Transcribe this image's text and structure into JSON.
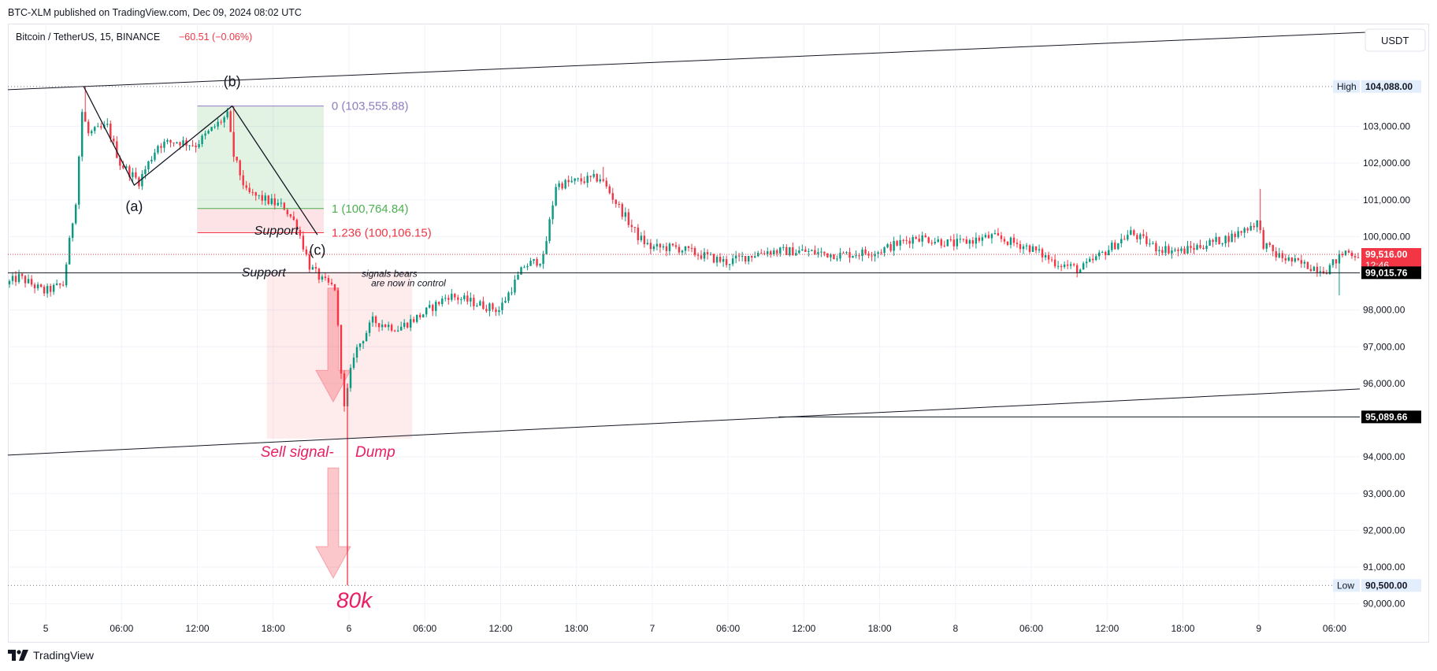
{
  "header": {
    "publisher": "BTC-XLM published on TradingView.com, Dec 09, 2024 08:02 UTC"
  },
  "symbol": {
    "name": "Bitcoin / TetherUS, 15, BINANCE",
    "change": "−60.51 (−0.06%)"
  },
  "currency_button": "USDT",
  "footer": {
    "brand": "TradingView"
  },
  "colors": {
    "up": "#089981",
    "down": "#f23645",
    "axis_text": "#131722",
    "annotation_pink": "#e91e63",
    "fib_purple": "#8e7cc3",
    "fib_green": "#4caf50",
    "fib_red": "#f23645"
  },
  "chart_data": {
    "type": "candlestick",
    "ylim": [
      89500,
      105800
    ],
    "y_ticks": [
      {
        "v": 90000,
        "label": "90,000.00"
      },
      {
        "v": 91000,
        "label": "91,000.00"
      },
      {
        "v": 92000,
        "label": "92,000.00"
      },
      {
        "v": 93000,
        "label": "93,000.00"
      },
      {
        "v": 94000,
        "label": "94,000.00"
      },
      {
        "v": 96000,
        "label": "96,000.00"
      },
      {
        "v": 97000,
        "label": "97,000.00"
      },
      {
        "v": 98000,
        "label": "98,000.00"
      },
      {
        "v": 100000,
        "label": "100,000.00"
      },
      {
        "v": 101000,
        "label": "101,000.00"
      },
      {
        "v": 102000,
        "label": "102,000.00"
      },
      {
        "v": 103000,
        "label": "103,000.00"
      }
    ],
    "x_range": [
      "2024-12-04 21:00",
      "2024-12-09 08:00"
    ],
    "x_ticks": [
      {
        "t": "2024-12-05 00:00",
        "label": "5"
      },
      {
        "t": "2024-12-05 06:00",
        "label": "06:00"
      },
      {
        "t": "2024-12-05 12:00",
        "label": "12:00"
      },
      {
        "t": "2024-12-05 18:00",
        "label": "18:00"
      },
      {
        "t": "2024-12-06 00:00",
        "label": "6"
      },
      {
        "t": "2024-12-06 06:00",
        "label": "06:00"
      },
      {
        "t": "2024-12-06 12:00",
        "label": "12:00"
      },
      {
        "t": "2024-12-06 18:00",
        "label": "18:00"
      },
      {
        "t": "2024-12-07 00:00",
        "label": "7"
      },
      {
        "t": "2024-12-07 06:00",
        "label": "06:00"
      },
      {
        "t": "2024-12-07 12:00",
        "label": "12:00"
      },
      {
        "t": "2024-12-07 18:00",
        "label": "18:00"
      },
      {
        "t": "2024-12-08 00:00",
        "label": "8"
      },
      {
        "t": "2024-12-08 06:00",
        "label": "06:00"
      },
      {
        "t": "2024-12-08 12:00",
        "label": "12:00"
      },
      {
        "t": "2024-12-08 18:00",
        "label": "18:00"
      },
      {
        "t": "2024-12-09 00:00",
        "label": "9"
      },
      {
        "t": "2024-12-09 06:00",
        "label": "06:00"
      }
    ],
    "candle_interval_minutes": 15,
    "price_path": [
      [
        "2024-12-04 21:00",
        98700
      ],
      [
        "2024-12-04 22:00",
        98900
      ],
      [
        "2024-12-05 00:00",
        98500
      ],
      [
        "2024-12-05 01:30",
        98700
      ],
      [
        "2024-12-05 02:30",
        101000
      ],
      [
        "2024-12-05 03:00",
        103400
      ],
      [
        "2024-12-05 03:30",
        102800
      ],
      [
        "2024-12-05 05:00",
        103000
      ],
      [
        "2024-12-05 06:00",
        102000
      ],
      [
        "2024-12-05 07:30",
        101500
      ],
      [
        "2024-12-05 09:00",
        102500
      ],
      [
        "2024-12-05 10:30",
        102600
      ],
      [
        "2024-12-05 12:00",
        102500
      ],
      [
        "2024-12-05 13:30",
        103000
      ],
      [
        "2024-12-05 14:30",
        103300
      ],
      [
        "2024-12-05 15:00",
        102200
      ],
      [
        "2024-12-05 16:00",
        101200
      ],
      [
        "2024-12-05 17:30",
        101000
      ],
      [
        "2024-12-05 19:00",
        100800
      ],
      [
        "2024-12-05 20:00",
        100300
      ],
      [
        "2024-12-05 21:00",
        99200
      ],
      [
        "2024-12-05 22:00",
        98800
      ],
      [
        "2024-12-05 23:00",
        98600
      ],
      [
        "2024-12-05 23:45",
        95300
      ],
      [
        "2024-12-06 00:30",
        96800
      ],
      [
        "2024-12-06 02:00",
        97700
      ],
      [
        "2024-12-06 04:00",
        97500
      ],
      [
        "2024-12-06 06:00",
        97900
      ],
      [
        "2024-12-06 08:00",
        98400
      ],
      [
        "2024-12-06 10:00",
        98200
      ],
      [
        "2024-12-06 12:00",
        98000
      ],
      [
        "2024-12-06 14:00",
        99200
      ],
      [
        "2024-12-06 15:30",
        99400
      ],
      [
        "2024-12-06 16:30",
        101400
      ],
      [
        "2024-12-06 18:00",
        101500
      ],
      [
        "2024-12-06 20:00",
        101600
      ],
      [
        "2024-12-06 21:30",
        100800
      ],
      [
        "2024-12-06 23:00",
        100000
      ],
      [
        "2024-12-07 00:00",
        99700
      ],
      [
        "2024-12-07 02:00",
        99700
      ],
      [
        "2024-12-07 04:00",
        99500
      ],
      [
        "2024-12-07 06:00",
        99300
      ],
      [
        "2024-12-07 09:00",
        99600
      ],
      [
        "2024-12-07 12:00",
        99600
      ],
      [
        "2024-12-07 15:00",
        99500
      ],
      [
        "2024-12-07 18:00",
        99600
      ],
      [
        "2024-12-07 21:00",
        100000
      ],
      [
        "2024-12-08 00:00",
        99800
      ],
      [
        "2024-12-08 03:00",
        100000
      ],
      [
        "2024-12-08 06:00",
        99700
      ],
      [
        "2024-12-08 08:00",
        99300
      ],
      [
        "2024-12-08 10:00",
        99100
      ],
      [
        "2024-12-08 12:00",
        99600
      ],
      [
        "2024-12-08 14:00",
        100100
      ],
      [
        "2024-12-08 16:00",
        99700
      ],
      [
        "2024-12-08 18:00",
        99600
      ],
      [
        "2024-12-08 20:00",
        99800
      ],
      [
        "2024-12-08 22:00",
        100000
      ],
      [
        "2024-12-09 00:00",
        100400
      ],
      [
        "2024-12-09 00:30",
        99800
      ],
      [
        "2024-12-09 01:30",
        99500
      ],
      [
        "2024-12-09 03:00",
        99300
      ],
      [
        "2024-12-09 04:00",
        99200
      ],
      [
        "2024-12-09 05:30",
        99100
      ],
      [
        "2024-12-09 07:00",
        99600
      ],
      [
        "2024-12-09 07:45",
        99516
      ]
    ],
    "spikes": [
      {
        "t": "2024-12-05 14:45",
        "high": 103555.88
      },
      {
        "t": "2024-12-05 03:00",
        "high": 104088
      },
      {
        "t": "2024-12-05 23:45",
        "low": 94100
      },
      {
        "t": "2024-12-06 20:00",
        "high": 101900
      },
      {
        "t": "2024-12-09 00:00",
        "high": 101300
      },
      {
        "t": "2024-12-09 06:15",
        "low": 98400
      }
    ],
    "dump_wick": {
      "t": "2024-12-05 23:45",
      "low": 90500
    },
    "price_labels": [
      {
        "kind": "high",
        "tag": "High",
        "v": 104088,
        "label": "104,088.00"
      },
      {
        "kind": "low",
        "tag": "Low",
        "v": 90500,
        "label": "90,500.00"
      },
      {
        "kind": "last",
        "v": 99516,
        "label": "99,516.00",
        "countdown": "12:46"
      },
      {
        "kind": "support",
        "v": 99015.76,
        "label": "99,015.76"
      },
      {
        "kind": "level",
        "v": 95089.66,
        "label": "95,089.66"
      }
    ],
    "fib": {
      "t_start": "2024-12-05 12:00",
      "t_end": "2024-12-05 22:00",
      "levels": [
        {
          "v": 103555.88,
          "label": "0 (103,555.88)"
        },
        {
          "v": 100764.84,
          "label": "1 (100,764.84)"
        },
        {
          "v": 100106.15,
          "label": "1.236 (100,106.15)"
        }
      ]
    },
    "channel": {
      "upper": [
        [
          "2024-12-04 21:00",
          104000
        ],
        [
          "2024-12-09 11:00",
          105600
        ]
      ],
      "lower": [
        [
          "2024-12-04 21:00",
          94050
        ],
        [
          "2024-12-09 08:00",
          95850
        ]
      ]
    },
    "level_line": {
      "v": 95089.66,
      "t_start": "2024-12-07 10:00"
    },
    "support_line": {
      "v": 99015.76
    },
    "abc_path": [
      [
        "2024-12-05 03:00",
        104088
      ],
      [
        "2024-12-05 07:00",
        101400
      ],
      [
        "2024-12-05 14:45",
        103555.88
      ],
      [
        "2024-12-05 21:30",
        100050
      ]
    ],
    "wave_labels": [
      {
        "text": "(a)",
        "t": "2024-12-05 07:00",
        "v": 100700
      },
      {
        "text": "(b)",
        "t": "2024-12-05 14:45",
        "v": 104100
      },
      {
        "text": "(c)",
        "t": "2024-12-05 21:30",
        "v": 99500
      }
    ],
    "support_labels": [
      {
        "text": "Support",
        "t": "2024-12-05 16:30",
        "v": 100050
      },
      {
        "text": "Support",
        "t": "2024-12-05 15:30",
        "v": 98920
      }
    ],
    "zone_box": {
      "t_start": "2024-12-05 17:30",
      "t_end": "2024-12-06 05:00",
      "top": 99050,
      "bottom": 94500
    },
    "notes": [
      {
        "text": "signals bears",
        "t": "2024-12-06 01:00",
        "v": 98900
      },
      {
        "text": "are now in control",
        "t": "2024-12-06 01:45",
        "v": 98650
      }
    ],
    "sell_labels": [
      {
        "text": "Sell signal-",
        "t": "2024-12-05 17:00",
        "v": 94000
      },
      {
        "text": "Dump",
        "t": "2024-12-06 00:30",
        "v": 94000
      },
      {
        "text": "80k",
        "t": "2024-12-05 23:00",
        "v": 89900
      }
    ],
    "arrows": [
      {
        "t": "2024-12-05 22:45",
        "top": 98600,
        "bottom": 95500
      },
      {
        "t": "2024-12-05 22:45",
        "top": 93700,
        "bottom": 90700
      }
    ]
  }
}
